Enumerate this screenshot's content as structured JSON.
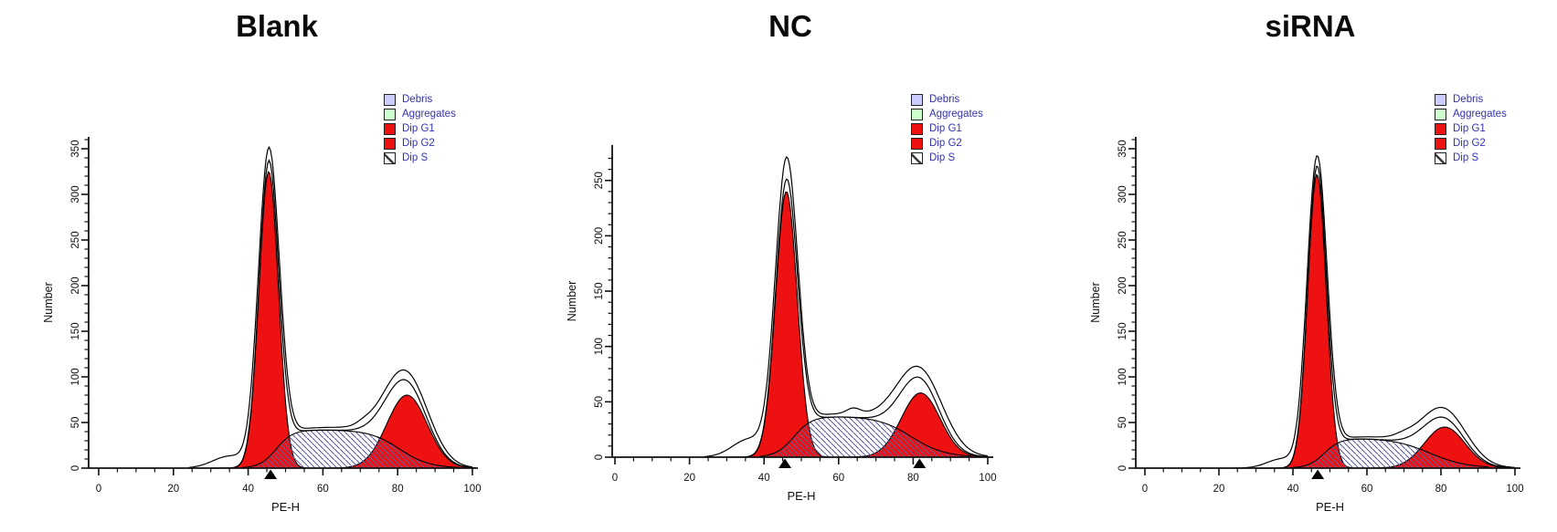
{
  "colors": {
    "fill_red": "#ee1111",
    "hatch_line": "#5c5c9e",
    "axis": "#111111",
    "legend_text": "#3333b3",
    "title_text": "#0a0a0a"
  },
  "legend": {
    "items": [
      {
        "label": "Debris",
        "swatch": "debris",
        "color": "#ccccff"
      },
      {
        "label": "Aggregates",
        "swatch": "aggregates",
        "color": "#ccffcc"
      },
      {
        "label": "Dip G1",
        "swatch": "dip-g1",
        "color": "#ee1111"
      },
      {
        "label": "Dip G2",
        "swatch": "dip-g2",
        "color": "#ee1111"
      },
      {
        "label": "Dip S",
        "swatch": "dip-s",
        "color": "hatch"
      }
    ]
  },
  "chart_data": [
    {
      "title": "Blank",
      "type": "area",
      "xlabel": "PE-H",
      "ylabel": "Number",
      "xlim": [
        0,
        100
      ],
      "x_major_ticks": [
        0,
        20,
        40,
        60,
        80,
        100
      ],
      "x_minor_step": 5,
      "ylim": [
        0,
        363
      ],
      "y_major_ticks": [
        0,
        50,
        100,
        150,
        200,
        250,
        300,
        350
      ],
      "y_minor_step": 10,
      "axis_markers_x": [
        46
      ],
      "summary": {
        "g1_peak_x": 45.5,
        "g1_peak_height": 325,
        "g2_peak_x": 82.5,
        "g2_peak_height": 80,
        "s_plateau_height": 42,
        "raw_curve_max": 350
      },
      "model": {
        "g1": {
          "center": 45.5,
          "sigma": 2.6,
          "amp": 325
        },
        "g2": {
          "center": 82.5,
          "sigma": 5.4,
          "amp": 80
        },
        "s": {
          "height": 42,
          "rise_center": 47.5,
          "rise_width": 2.2,
          "fall_center": 80.5,
          "fall_width": 4.0
        },
        "raw": {
          "g1_amp": 338,
          "g1_sigma": 2.8,
          "g2_amp": 90,
          "g2_sigma": 5.8,
          "foot": {
            "center": 35,
            "amp": 13,
            "sigma": 4.5
          },
          "mid": {
            "center": 63,
            "amp": 3,
            "sigma": 10
          },
          "bump": {
            "center": 71,
            "amp": 3,
            "sigma": 2
          }
        }
      }
    },
    {
      "title": "NC",
      "type": "area",
      "xlabel": "PE-H",
      "ylabel": "Number",
      "xlim": [
        0,
        100
      ],
      "x_major_ticks": [
        0,
        20,
        40,
        60,
        80,
        100
      ],
      "x_minor_step": 5,
      "ylim": [
        0,
        282
      ],
      "y_major_ticks": [
        0,
        50,
        100,
        150,
        200,
        250
      ],
      "y_minor_step": 10,
      "axis_markers_x": [
        45.6,
        81.7
      ],
      "summary": {
        "g1_peak_x": 46,
        "g1_peak_height": 240,
        "g2_peak_x": 82,
        "g2_peak_height": 58,
        "s_plateau_height": 37,
        "raw_curve_max": 269
      },
      "model": {
        "g1": {
          "center": 46,
          "sigma": 2.9,
          "amp": 240
        },
        "g2": {
          "center": 82,
          "sigma": 5.2,
          "amp": 58
        },
        "s": {
          "height": 37,
          "rise_center": 48.0,
          "rise_width": 2.4,
          "fall_center": 79.5,
          "fall_width": 4.5
        },
        "raw": {
          "g1_amp": 258,
          "g1_sigma": 3.0,
          "g2_amp": 67,
          "g2_sigma": 6.0,
          "foot": {
            "center": 36,
            "amp": 16,
            "sigma": 4.5
          },
          "mid": {
            "center": 63,
            "amp": 3,
            "sigma": 10
          },
          "bump": {
            "center": 64,
            "amp": 5,
            "sigma": 1.8
          }
        }
      }
    },
    {
      "title": "siRNA",
      "type": "area",
      "xlabel": "PE-H",
      "ylabel": "Number",
      "xlim": [
        0,
        100
      ],
      "x_major_ticks": [
        0,
        20,
        40,
        60,
        80,
        100
      ],
      "x_minor_step": 5,
      "ylim": [
        0,
        363
      ],
      "y_major_ticks": [
        0,
        50,
        100,
        150,
        200,
        250,
        300,
        350
      ],
      "y_minor_step": 10,
      "axis_markers_x": [
        46.7
      ],
      "summary": {
        "g1_peak_x": 46.5,
        "g1_peak_height": 322,
        "g2_peak_x": 81,
        "g2_peak_height": 45,
        "s_plateau_height": 33,
        "raw_curve_max": 342
      },
      "model": {
        "g1": {
          "center": 46.5,
          "sigma": 2.5,
          "amp": 322
        },
        "g2": {
          "center": 81,
          "sigma": 5.5,
          "amp": 45
        },
        "s": {
          "height": 33,
          "rise_center": 48.5,
          "rise_width": 2.2,
          "fall_center": 77.0,
          "fall_width": 5.0
        },
        "raw": {
          "g1_amp": 332,
          "g1_sigma": 2.7,
          "g2_amp": 55,
          "g2_sigma": 6.0,
          "foot": {
            "center": 37,
            "amp": 10,
            "sigma": 4.0
          },
          "mid": {
            "center": 63,
            "amp": 2.5,
            "sigma": 10
          },
          "bump": {
            "center": 70,
            "amp": 3,
            "sigma": 2.5
          }
        }
      }
    }
  ]
}
